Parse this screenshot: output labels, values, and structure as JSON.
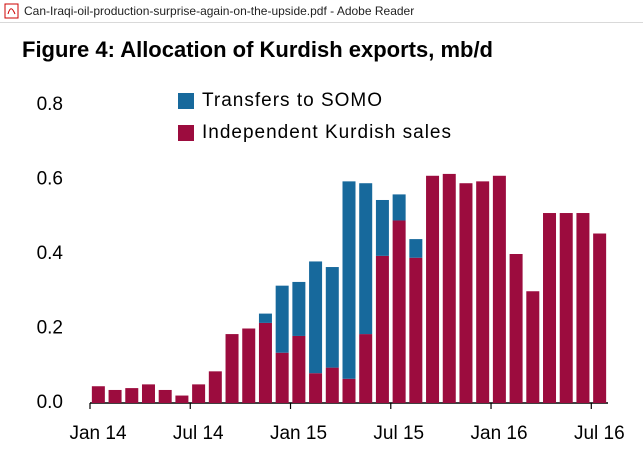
{
  "window_title": "Can-Iraqi-oil-production-surprise-again-on-the-upside.pdf - Adobe Reader",
  "chart_data": {
    "type": "stacked-bar",
    "title": "Figure 4: Allocation of Kurdish exports, mb/d",
    "categories": [
      "Jan 14",
      null,
      null,
      null,
      null,
      null,
      "Jul 14",
      null,
      null,
      null,
      null,
      null,
      "Jan 15",
      null,
      null,
      null,
      null,
      null,
      "Jul 15",
      null,
      null,
      null,
      null,
      null,
      "Jan 16",
      null,
      null,
      null,
      null,
      null,
      "Jul 16"
    ],
    "series": [
      {
        "name": "Transfers to SOMO",
        "color": "#17699c",
        "values": [
          null,
          null,
          null,
          null,
          null,
          null,
          null,
          null,
          null,
          null,
          0.025,
          0.18,
          0.145,
          0.3,
          0.27,
          0.53,
          0.405,
          0.15,
          0.07,
          0.05,
          null,
          null,
          null,
          null,
          null,
          null,
          null,
          null,
          null,
          null,
          null
        ]
      },
      {
        "name": "Independent Kurdish sales",
        "color": "#9c0c3e",
        "values": [
          0.045,
          0.035,
          0.04,
          0.05,
          0.035,
          0.02,
          0.05,
          0.085,
          0.185,
          0.2,
          0.215,
          0.135,
          0.18,
          0.08,
          0.095,
          0.065,
          0.185,
          0.395,
          0.49,
          0.39,
          0.61,
          0.615,
          0.59,
          0.595,
          0.61,
          0.4,
          0.3,
          0.51,
          0.51,
          0.51,
          0.455
        ]
      }
    ],
    "ylim": [
      0,
      0.8
    ],
    "yticks": [
      {
        "value": 0,
        "label": "0.0"
      },
      0.2,
      0.4,
      0.6,
      0.8
    ],
    "legend": "top-center"
  }
}
